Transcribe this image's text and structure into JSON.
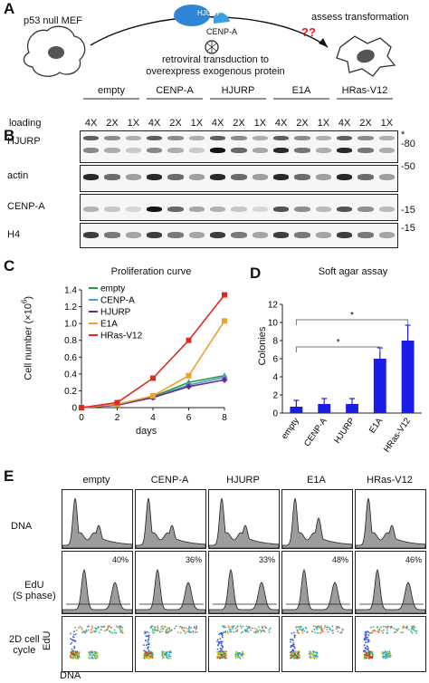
{
  "panelA": {
    "label": "A",
    "left_caption": "p53 null MEF",
    "right_caption": "assess transformation",
    "hjurp_label": "HJURP",
    "cenpa_label": "CENP-A",
    "question": "??",
    "transduction_line1": "retroviral transduction to",
    "transduction_line2": "overexpress exogenous protein"
  },
  "panelB": {
    "label": "B",
    "loading_label": "loading",
    "groups": [
      "empty",
      "CENP-A",
      "HJURP",
      "E1A",
      "HRas-V12"
    ],
    "loadings": [
      "4X",
      "2X",
      "1X"
    ],
    "rows": [
      {
        "name": "HJURP",
        "marker": "-80",
        "star": "*"
      },
      {
        "name": "actin",
        "marker": "-50"
      },
      {
        "name": "CENP-A",
        "marker": "-15"
      },
      {
        "name": "H4",
        "marker": "-15"
      }
    ]
  },
  "panelC": {
    "label": "C",
    "chart_data": {
      "type": "line",
      "title": "Proliferation curve",
      "xlabel": "days",
      "ylabel": "Cell number (×10",
      "ylabel_sup": "6",
      "ylabel_close": ")",
      "x": [
        0,
        2,
        4,
        6,
        8
      ],
      "xlim": [
        0,
        8
      ],
      "ylim": [
        0,
        1.4
      ],
      "xticks": [
        "0",
        "2",
        "4",
        "6",
        "8"
      ],
      "yticks": [
        "0",
        "0.2",
        "0.4",
        "0.6",
        "0.8",
        "1.0",
        "1.2",
        "1.4"
      ],
      "legend_position": "top-left",
      "series": [
        {
          "name": "empty",
          "color": "#2a9a3a",
          "marker": "triangle",
          "values": [
            0,
            0.03,
            0.13,
            0.3,
            0.38
          ]
        },
        {
          "name": "CENP-A",
          "color": "#4a9bd6",
          "marker": "circle",
          "values": [
            0,
            0.03,
            0.12,
            0.27,
            0.36
          ]
        },
        {
          "name": "HJURP",
          "color": "#6a2a8a",
          "marker": "diamond",
          "values": [
            0,
            0.03,
            0.12,
            0.25,
            0.33
          ]
        },
        {
          "name": "E1A",
          "color": "#f0a030",
          "marker": "square",
          "values": [
            0,
            0.04,
            0.14,
            0.38,
            1.03
          ]
        },
        {
          "name": "HRas-V12",
          "color": "#e02a20",
          "marker": "square",
          "values": [
            0,
            0.06,
            0.35,
            0.8,
            1.34
          ]
        }
      ]
    }
  },
  "panelD": {
    "label": "D",
    "chart_data": {
      "type": "bar",
      "title": "Soft agar assay",
      "ylabel": "Colonies",
      "categories": [
        "empty",
        "CENP-A",
        "HJURP",
        "E1A",
        "HRas-V12"
      ],
      "values": [
        0.7,
        1.0,
        1.0,
        6.0,
        8.0
      ],
      "errors": [
        0.7,
        0.6,
        0.6,
        1.2,
        1.7
      ],
      "ylim": [
        0,
        12
      ],
      "yticks": [
        "0",
        "2",
        "4",
        "6",
        "8",
        "10",
        "12"
      ],
      "bar_color": "#1c1ce8",
      "significance": [
        {
          "from": 0,
          "to": 3,
          "mark": "*"
        },
        {
          "from": 0,
          "to": 4,
          "mark": "*"
        }
      ]
    }
  },
  "panelE": {
    "label": "E",
    "columns": [
      "empty",
      "CENP-A",
      "HJURP",
      "E1A",
      "HRas-V12"
    ],
    "row_labels": {
      "dna": "DNA",
      "edu_line1": "EdU",
      "edu_line2": "(S phase)",
      "cycle_line1": "2D cell",
      "cycle_line2": "cycle"
    },
    "edu_percents": [
      "40%",
      "36%",
      "33%",
      "48%",
      "46%"
    ],
    "axis_y": "EdU",
    "axis_x": "DNA"
  }
}
